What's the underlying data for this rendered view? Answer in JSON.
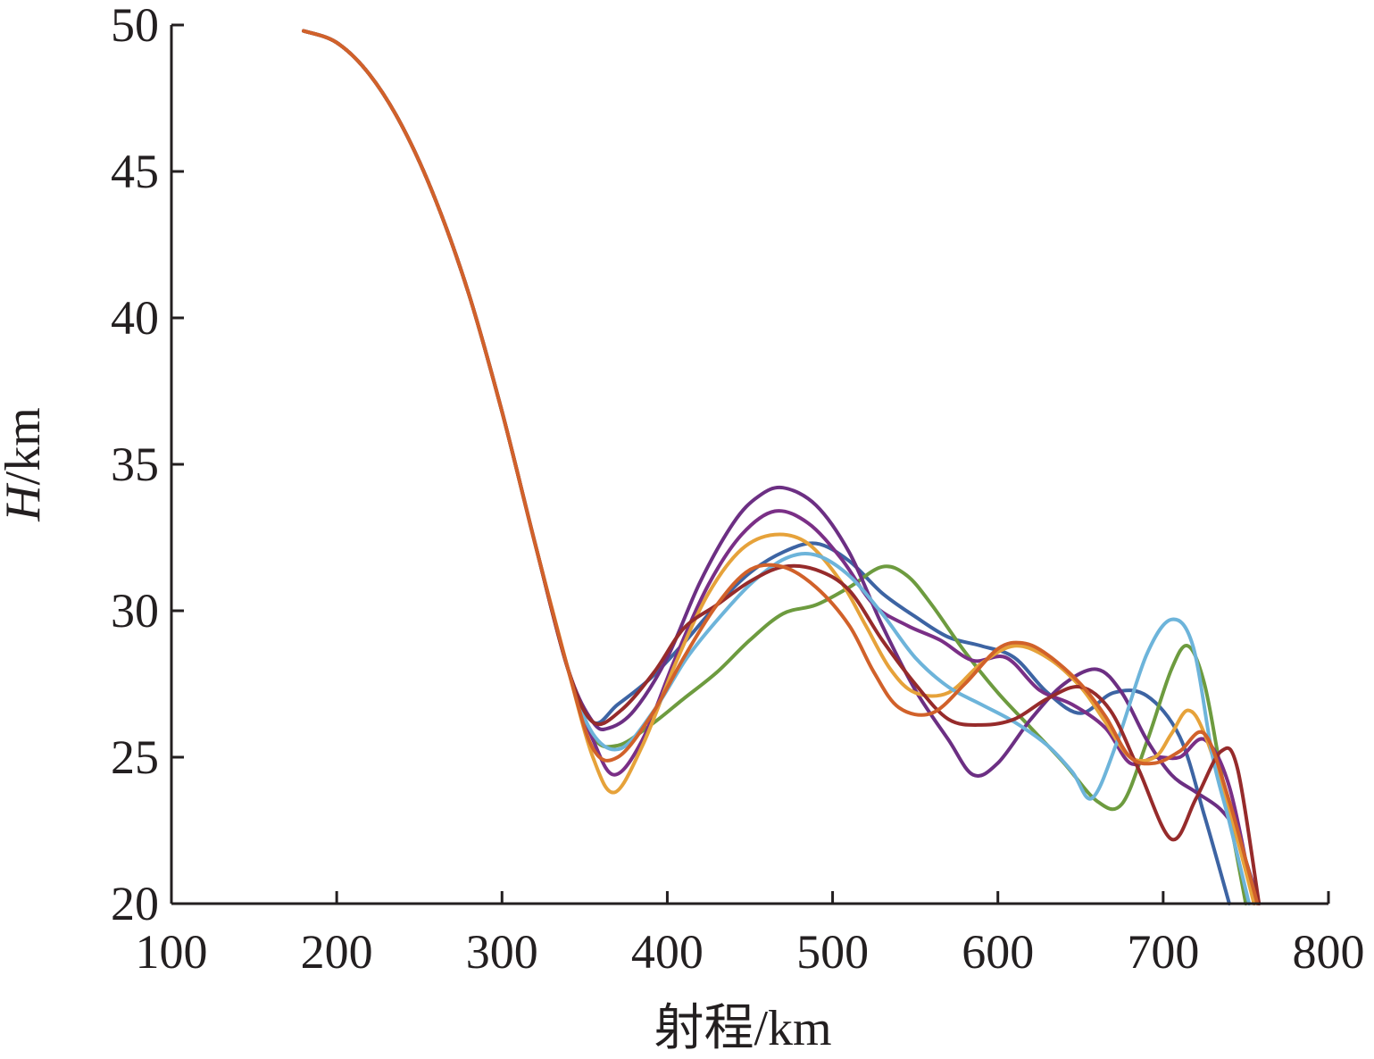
{
  "chart_data": {
    "type": "line",
    "title": "",
    "xlabel": "射程/km",
    "ylabel_italic": "H",
    "ylabel_unit": "/km",
    "xlim": [
      100,
      800
    ],
    "ylim": [
      20,
      50
    ],
    "xticks": [
      "100",
      "200",
      "300",
      "400",
      "500",
      "600",
      "700",
      "800"
    ],
    "yticks": [
      "20",
      "25",
      "30",
      "35",
      "40",
      "45",
      "50"
    ],
    "grid": false,
    "legend": "none",
    "common_start": [
      [
        180,
        49.8
      ],
      [
        200,
        49.4
      ],
      [
        220,
        48.3
      ],
      [
        240,
        46.5
      ],
      [
        260,
        44.0
      ],
      [
        280,
        40.8
      ],
      [
        300,
        36.8
      ],
      [
        320,
        32.3
      ],
      [
        340,
        28.0
      ]
    ],
    "series": [
      {
        "color": "#3d64a3",
        "points": [
          [
            355,
            26.2
          ],
          [
            370,
            26.8
          ],
          [
            390,
            27.7
          ],
          [
            410,
            28.9
          ],
          [
            430,
            30.2
          ],
          [
            450,
            31.3
          ],
          [
            470,
            32.0
          ],
          [
            490,
            32.3
          ],
          [
            510,
            31.7
          ],
          [
            530,
            30.6
          ],
          [
            550,
            29.8
          ],
          [
            570,
            29.1
          ],
          [
            590,
            28.8
          ],
          [
            610,
            28.4
          ],
          [
            630,
            27.2
          ],
          [
            650,
            26.5
          ],
          [
            670,
            27.2
          ],
          [
            690,
            27.1
          ],
          [
            710,
            25.7
          ],
          [
            725,
            23.0
          ],
          [
            740,
            20.0
          ]
        ]
      },
      {
        "color": "#6d9b3f",
        "points": [
          [
            355,
            25.7
          ],
          [
            370,
            25.4
          ],
          [
            390,
            26.1
          ],
          [
            410,
            27.0
          ],
          [
            430,
            27.9
          ],
          [
            450,
            29.0
          ],
          [
            470,
            29.9
          ],
          [
            490,
            30.2
          ],
          [
            510,
            30.8
          ],
          [
            530,
            31.5
          ],
          [
            545,
            31.2
          ],
          [
            560,
            30.2
          ],
          [
            580,
            28.6
          ],
          [
            600,
            27.2
          ],
          [
            620,
            26.0
          ],
          [
            640,
            24.8
          ],
          [
            660,
            23.5
          ],
          [
            675,
            23.4
          ],
          [
            690,
            25.5
          ],
          [
            705,
            28.0
          ],
          [
            715,
            28.8
          ],
          [
            725,
            27.5
          ],
          [
            735,
            24.5
          ],
          [
            750,
            20.0
          ]
        ]
      },
      {
        "color": "#6c2f83",
        "points": [
          [
            355,
            26.2
          ],
          [
            365,
            26.0
          ],
          [
            380,
            26.6
          ],
          [
            400,
            28.4
          ],
          [
            420,
            31.0
          ],
          [
            440,
            33.0
          ],
          [
            455,
            33.9
          ],
          [
            470,
            34.2
          ],
          [
            490,
            33.6
          ],
          [
            510,
            32.0
          ],
          [
            530,
            29.5
          ],
          [
            550,
            27.3
          ],
          [
            570,
            25.6
          ],
          [
            585,
            24.4
          ],
          [
            600,
            24.8
          ],
          [
            620,
            26.3
          ],
          [
            640,
            27.5
          ],
          [
            660,
            28.0
          ],
          [
            675,
            27.2
          ],
          [
            690,
            25.6
          ],
          [
            705,
            24.4
          ],
          [
            720,
            23.8
          ],
          [
            735,
            23.2
          ],
          [
            745,
            22.3
          ],
          [
            758,
            20.0
          ]
        ]
      },
      {
        "color": "#7a2f86",
        "points": [
          [
            355,
            25.6
          ],
          [
            368,
            24.4
          ],
          [
            385,
            25.6
          ],
          [
            405,
            28.4
          ],
          [
            425,
            30.9
          ],
          [
            445,
            32.6
          ],
          [
            465,
            33.4
          ],
          [
            485,
            33.0
          ],
          [
            505,
            31.8
          ],
          [
            525,
            30.2
          ],
          [
            545,
            29.5
          ],
          [
            565,
            29.0
          ],
          [
            585,
            28.3
          ],
          [
            605,
            28.4
          ],
          [
            625,
            27.3
          ],
          [
            645,
            26.8
          ],
          [
            665,
            26.0
          ],
          [
            680,
            24.8
          ],
          [
            695,
            25.0
          ],
          [
            710,
            25.0
          ],
          [
            725,
            25.6
          ],
          [
            740,
            24.0
          ],
          [
            755,
            20.0
          ]
        ]
      },
      {
        "color": "#e6a23a",
        "points": [
          [
            355,
            25.0
          ],
          [
            368,
            23.8
          ],
          [
            385,
            25.4
          ],
          [
            405,
            28.2
          ],
          [
            425,
            30.6
          ],
          [
            445,
            32.1
          ],
          [
            465,
            32.6
          ],
          [
            485,
            32.3
          ],
          [
            505,
            31.0
          ],
          [
            520,
            29.5
          ],
          [
            535,
            28.0
          ],
          [
            550,
            27.2
          ],
          [
            570,
            27.2
          ],
          [
            590,
            28.2
          ],
          [
            610,
            28.8
          ],
          [
            630,
            28.4
          ],
          [
            650,
            27.4
          ],
          [
            665,
            26.2
          ],
          [
            680,
            25.0
          ],
          [
            695,
            25.0
          ],
          [
            705,
            25.8
          ],
          [
            715,
            26.6
          ],
          [
            725,
            25.8
          ],
          [
            740,
            23.2
          ],
          [
            755,
            20.0
          ]
        ]
      },
      {
        "color": "#6db4da",
        "points": [
          [
            355,
            25.8
          ],
          [
            372,
            25.3
          ],
          [
            392,
            26.6
          ],
          [
            412,
            28.4
          ],
          [
            432,
            29.8
          ],
          [
            452,
            31.0
          ],
          [
            472,
            31.8
          ],
          [
            490,
            31.9
          ],
          [
            510,
            31.2
          ],
          [
            530,
            29.9
          ],
          [
            550,
            28.4
          ],
          [
            570,
            27.4
          ],
          [
            590,
            26.8
          ],
          [
            610,
            26.2
          ],
          [
            630,
            25.4
          ],
          [
            645,
            24.5
          ],
          [
            657,
            23.6
          ],
          [
            672,
            25.5
          ],
          [
            690,
            28.5
          ],
          [
            705,
            29.7
          ],
          [
            718,
            28.8
          ],
          [
            730,
            25.0
          ],
          [
            740,
            22.8
          ],
          [
            752,
            20.0
          ]
        ]
      },
      {
        "color": "#962b2b",
        "points": [
          [
            355,
            26.2
          ],
          [
            372,
            26.6
          ],
          [
            392,
            27.9
          ],
          [
            410,
            29.4
          ],
          [
            430,
            30.2
          ],
          [
            450,
            31.0
          ],
          [
            470,
            31.5
          ],
          [
            490,
            31.4
          ],
          [
            510,
            30.7
          ],
          [
            530,
            29.0
          ],
          [
            550,
            27.5
          ],
          [
            570,
            26.3
          ],
          [
            590,
            26.1
          ],
          [
            610,
            26.3
          ],
          [
            630,
            27.0
          ],
          [
            650,
            27.4
          ],
          [
            668,
            26.6
          ],
          [
            685,
            24.6
          ],
          [
            705,
            22.2
          ],
          [
            720,
            23.6
          ],
          [
            735,
            25.2
          ],
          [
            745,
            24.6
          ],
          [
            758,
            20.0
          ]
        ]
      },
      {
        "color": "#d1612a",
        "points": [
          [
            355,
            25.3
          ],
          [
            370,
            25.0
          ],
          [
            390,
            26.4
          ],
          [
            410,
            28.4
          ],
          [
            430,
            30.2
          ],
          [
            450,
            31.4
          ],
          [
            470,
            31.5
          ],
          [
            490,
            30.8
          ],
          [
            510,
            29.5
          ],
          [
            525,
            27.9
          ],
          [
            540,
            26.7
          ],
          [
            560,
            26.5
          ],
          [
            580,
            27.5
          ],
          [
            600,
            28.7
          ],
          [
            615,
            28.9
          ],
          [
            630,
            28.5
          ],
          [
            650,
            27.5
          ],
          [
            665,
            26.4
          ],
          [
            680,
            25.0
          ],
          [
            695,
            24.8
          ],
          [
            710,
            25.2
          ],
          [
            725,
            25.8
          ],
          [
            740,
            23.5
          ],
          [
            757,
            20.0
          ]
        ]
      }
    ]
  }
}
